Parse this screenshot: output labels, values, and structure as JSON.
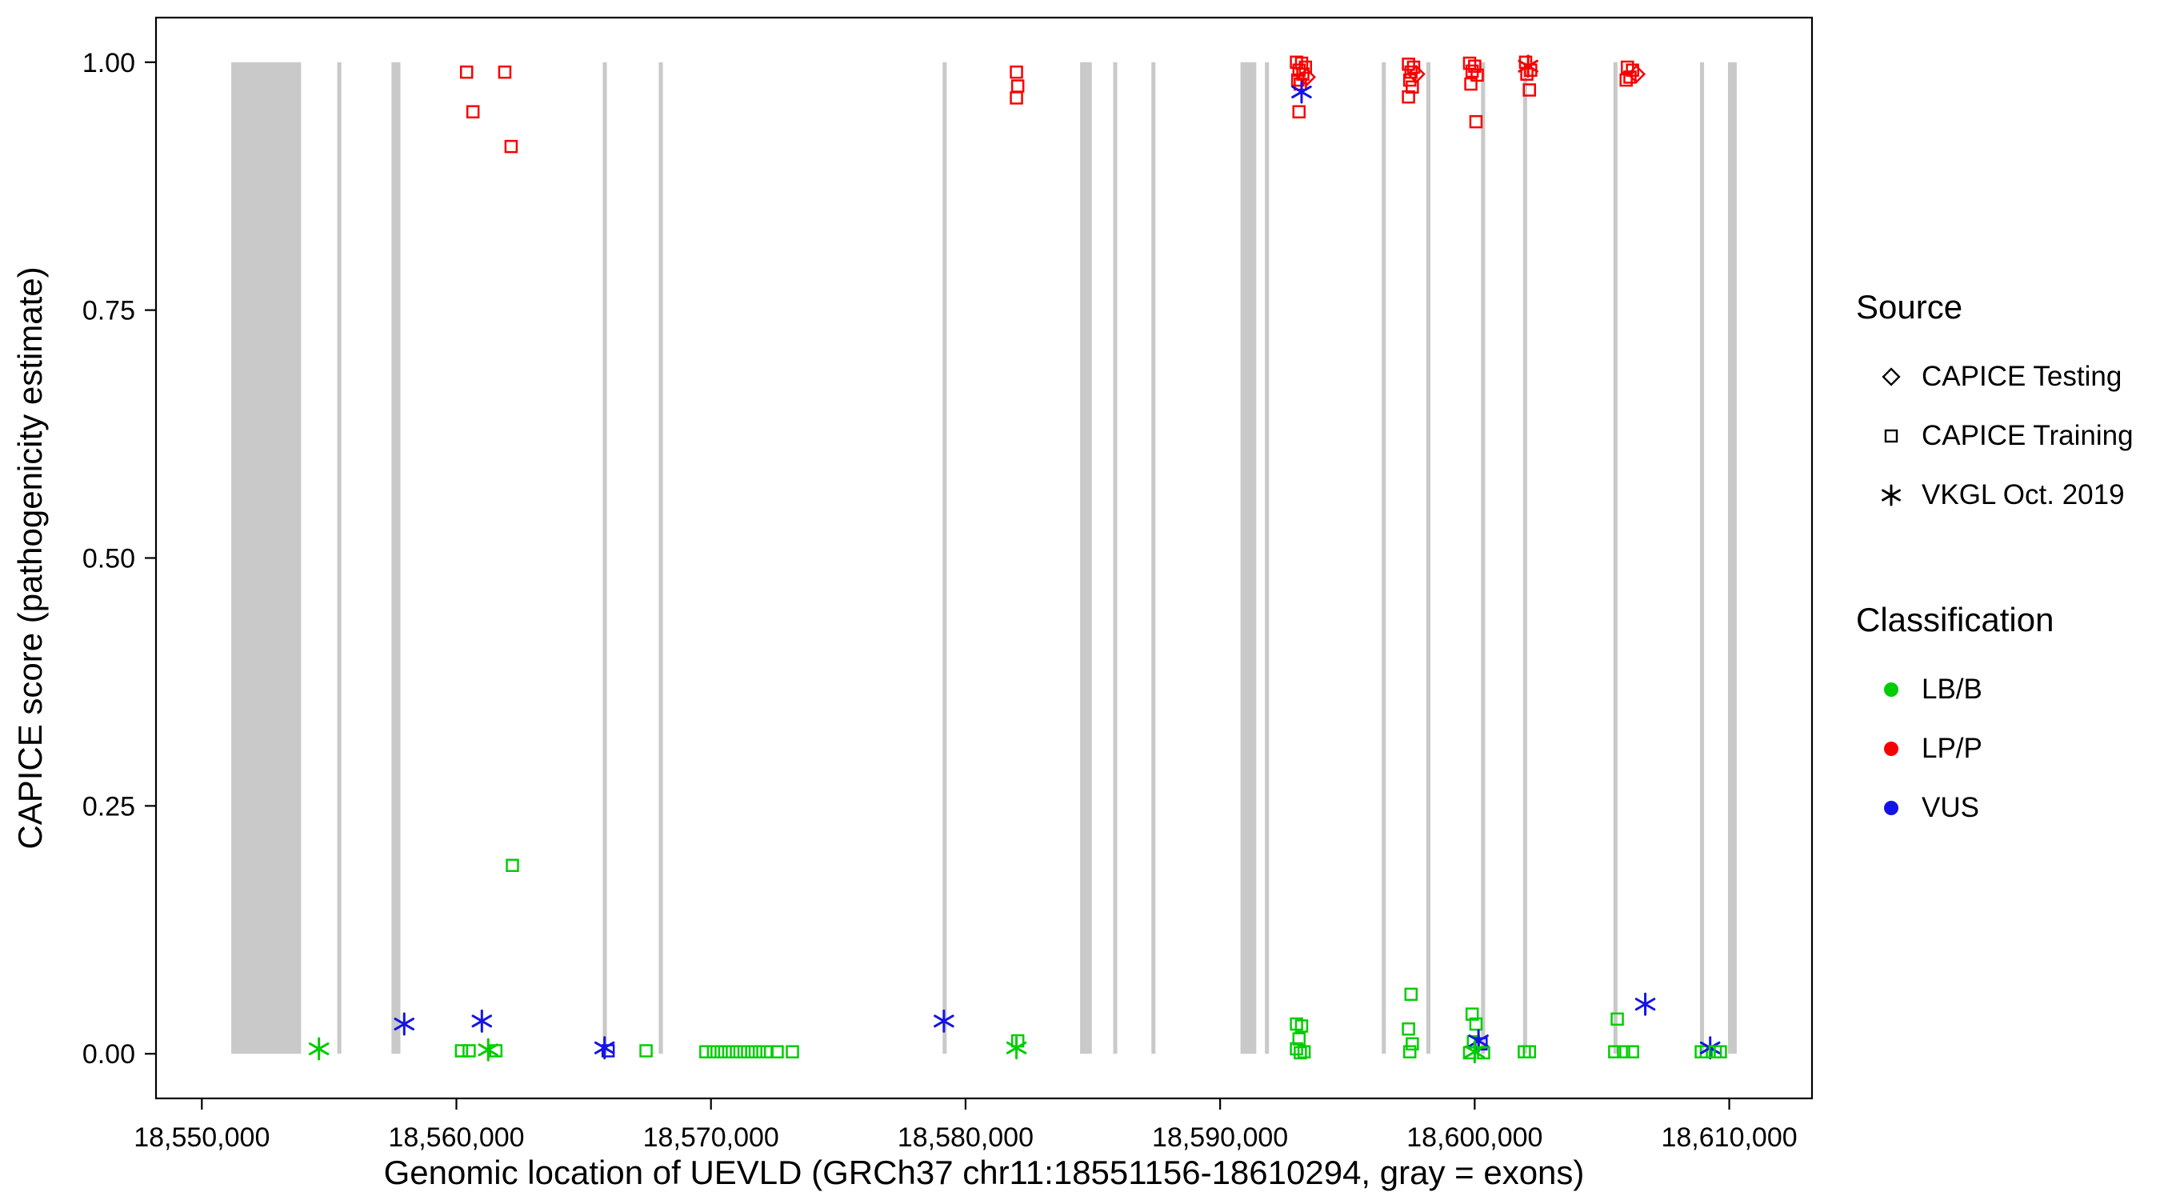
{
  "colors": {
    "LB/B": "#00CD00",
    "LP/P": "#F80000",
    "VUS": "#1414E6",
    "exon": "#C9C9C9",
    "axis": "#000000"
  },
  "legend": {
    "source": {
      "title": "Source",
      "items": [
        {
          "label": "CAPICE Testing",
          "marker": "diamond"
        },
        {
          "label": "CAPICE Training",
          "marker": "square"
        },
        {
          "label": "VKGL Oct. 2019",
          "marker": "asterisk"
        }
      ]
    },
    "classification": {
      "title": "Classification",
      "items": [
        {
          "label": "LB/B",
          "color": "#00CD00"
        },
        {
          "label": "LP/P",
          "color": "#F80000"
        },
        {
          "label": "VUS",
          "color": "#1414E6"
        }
      ]
    }
  },
  "chart_data": {
    "type": "scatter",
    "title": "",
    "xlabel": "Genomic location of UEVLD (GRCh37 chr11:18551156-18610294, gray = exons)",
    "ylabel": "CAPICE score (pathogenicity estimate)",
    "xlim": [
      18548200,
      18613250
    ],
    "ylim": [
      -0.045,
      1.045
    ],
    "grid": false,
    "legend_position": "right",
    "x_ticks": [
      {
        "value": 18550000,
        "label": "18,550,000"
      },
      {
        "value": 18560000,
        "label": "18,560,000"
      },
      {
        "value": 18570000,
        "label": "18,570,000"
      },
      {
        "value": 18580000,
        "label": "18,580,000"
      },
      {
        "value": 18590000,
        "label": "18,590,000"
      },
      {
        "value": 18600000,
        "label": "18,600,000"
      },
      {
        "value": 18610000,
        "label": "18,610,000"
      }
    ],
    "y_ticks": [
      {
        "value": 0.0,
        "label": "0.00"
      },
      {
        "value": 0.25,
        "label": "0.25"
      },
      {
        "value": 0.5,
        "label": "0.50"
      },
      {
        "value": 0.75,
        "label": "0.75"
      },
      {
        "value": 1.0,
        "label": "1.00"
      }
    ],
    "exons": [
      [
        18551156,
        18553900
      ],
      [
        18555320,
        18555480
      ],
      [
        18557450,
        18557800
      ],
      [
        18565750,
        18565910
      ],
      [
        18567950,
        18568110
      ],
      [
        18579100,
        18579260
      ],
      [
        18584500,
        18584960
      ],
      [
        18585800,
        18585960
      ],
      [
        18587300,
        18587460
      ],
      [
        18590800,
        18591420
      ],
      [
        18591760,
        18591920
      ],
      [
        18596350,
        18596510
      ],
      [
        18598100,
        18598260
      ],
      [
        18600250,
        18600410
      ],
      [
        18601900,
        18602060
      ],
      [
        18605450,
        18605610
      ],
      [
        18608850,
        18609010
      ],
      [
        18609950,
        18610294
      ]
    ],
    "points": [
      [
        18560400,
        0.99,
        "LP/P",
        "CAPICE Training"
      ],
      [
        18561900,
        0.99,
        "LP/P",
        "CAPICE Training"
      ],
      [
        18560650,
        0.95,
        "LP/P",
        "CAPICE Training"
      ],
      [
        18562150,
        0.915,
        "LP/P",
        "CAPICE Training"
      ],
      [
        18582000,
        0.99,
        "LP/P",
        "CAPICE Training"
      ],
      [
        18582050,
        0.976,
        "LP/P",
        "CAPICE Training"
      ],
      [
        18582000,
        0.964,
        "LP/P",
        "CAPICE Training"
      ],
      [
        18593000,
        1.0,
        "LP/P",
        "CAPICE Training"
      ],
      [
        18593200,
        0.999,
        "LP/P",
        "CAPICE Training"
      ],
      [
        18593350,
        0.995,
        "LP/P",
        "CAPICE Training"
      ],
      [
        18593100,
        0.992,
        "LP/P",
        "CAPICE Training"
      ],
      [
        18593250,
        0.988,
        "LP/P",
        "CAPICE Training"
      ],
      [
        18593400,
        0.985,
        "LP/P",
        "CAPICE Testing"
      ],
      [
        18593050,
        0.982,
        "LP/P",
        "CAPICE Training"
      ],
      [
        18593150,
        0.978,
        "LP/P",
        "CAPICE Training"
      ],
      [
        18593200,
        0.97,
        "VUS",
        "VKGL Oct. 2019"
      ],
      [
        18593100,
        0.95,
        "LP/P",
        "CAPICE Training"
      ],
      [
        18597400,
        0.998,
        "LP/P",
        "CAPICE Training"
      ],
      [
        18597600,
        0.995,
        "LP/P",
        "CAPICE Training"
      ],
      [
        18597500,
        0.99,
        "LP/P",
        "CAPICE Training"
      ],
      [
        18597700,
        0.988,
        "LP/P",
        "CAPICE Testing"
      ],
      [
        18597450,
        0.982,
        "LP/P",
        "CAPICE Training"
      ],
      [
        18597550,
        0.975,
        "LP/P",
        "CAPICE Training"
      ],
      [
        18597400,
        0.965,
        "LP/P",
        "CAPICE Training"
      ],
      [
        18599800,
        0.999,
        "LP/P",
        "CAPICE Training"
      ],
      [
        18600000,
        0.996,
        "LP/P",
        "CAPICE Training"
      ],
      [
        18599900,
        0.991,
        "LP/P",
        "CAPICE Training"
      ],
      [
        18600100,
        0.987,
        "LP/P",
        "CAPICE Training"
      ],
      [
        18599850,
        0.978,
        "LP/P",
        "CAPICE Training"
      ],
      [
        18600050,
        0.94,
        "LP/P",
        "CAPICE Training"
      ],
      [
        18602000,
        1.0,
        "LP/P",
        "CAPICE Training"
      ],
      [
        18602100,
        0.996,
        "LP/P",
        "VKGL Oct. 2019"
      ],
      [
        18602200,
        0.992,
        "LP/P",
        "CAPICE Training"
      ],
      [
        18602050,
        0.988,
        "LP/P",
        "CAPICE Training"
      ],
      [
        18602150,
        0.972,
        "LP/P",
        "CAPICE Training"
      ],
      [
        18606000,
        0.995,
        "LP/P",
        "CAPICE Training"
      ],
      [
        18606200,
        0.992,
        "LP/P",
        "CAPICE Training"
      ],
      [
        18606350,
        0.988,
        "LP/P",
        "CAPICE Testing"
      ],
      [
        18606100,
        0.985,
        "LP/P",
        "CAPICE Training"
      ],
      [
        18605950,
        0.982,
        "LP/P",
        "CAPICE Training"
      ],
      [
        18554600,
        0.005,
        "LB/B",
        "VKGL Oct. 2019"
      ],
      [
        18557950,
        0.03,
        "VUS",
        "VKGL Oct. 2019"
      ],
      [
        18560200,
        0.003,
        "LB/B",
        "CAPICE Training"
      ],
      [
        18560500,
        0.003,
        "LB/B",
        "CAPICE Training"
      ],
      [
        18561000,
        0.033,
        "VUS",
        "VKGL Oct. 2019"
      ],
      [
        18561250,
        0.004,
        "LB/B",
        "VKGL Oct. 2019"
      ],
      [
        18561550,
        0.003,
        "LB/B",
        "CAPICE Training"
      ],
      [
        18562200,
        0.19,
        "LB/B",
        "CAPICE Training"
      ],
      [
        18565820,
        0.006,
        "VUS",
        "VKGL Oct. 2019"
      ],
      [
        18565960,
        0.003,
        "VUS",
        "CAPICE Training"
      ],
      [
        18567450,
        0.003,
        "LB/B",
        "CAPICE Training"
      ],
      [
        18569800,
        0.002,
        "LB/B",
        "CAPICE Training"
      ],
      [
        18570100,
        0.002,
        "LB/B",
        "CAPICE Training"
      ],
      [
        18570400,
        0.002,
        "LB/B",
        "CAPICE Training"
      ],
      [
        18570700,
        0.002,
        "LB/B",
        "CAPICE Training"
      ],
      [
        18571000,
        0.002,
        "LB/B",
        "CAPICE Training"
      ],
      [
        18571300,
        0.002,
        "LB/B",
        "CAPICE Training"
      ],
      [
        18571600,
        0.002,
        "LB/B",
        "CAPICE Training"
      ],
      [
        18571900,
        0.002,
        "LB/B",
        "CAPICE Training"
      ],
      [
        18572200,
        0.002,
        "LB/B",
        "CAPICE Training"
      ],
      [
        18572600,
        0.002,
        "LB/B",
        "CAPICE Training"
      ],
      [
        18573200,
        0.002,
        "LB/B",
        "CAPICE Training"
      ],
      [
        18579150,
        0.033,
        "VUS",
        "VKGL Oct. 2019"
      ],
      [
        18582050,
        0.013,
        "LB/B",
        "CAPICE Training"
      ],
      [
        18582000,
        0.006,
        "LB/B",
        "VKGL Oct. 2019"
      ],
      [
        18593000,
        0.03,
        "LB/B",
        "CAPICE Training"
      ],
      [
        18593200,
        0.028,
        "LB/B",
        "CAPICE Training"
      ],
      [
        18593100,
        0.015,
        "LB/B",
        "CAPICE Training"
      ],
      [
        18593000,
        0.005,
        "LB/B",
        "CAPICE Training"
      ],
      [
        18593300,
        0.002,
        "LB/B",
        "CAPICE Training"
      ],
      [
        18593150,
        0.001,
        "LB/B",
        "CAPICE Training"
      ],
      [
        18597500,
        0.06,
        "LB/B",
        "CAPICE Training"
      ],
      [
        18597400,
        0.025,
        "LB/B",
        "CAPICE Training"
      ],
      [
        18597550,
        0.01,
        "LB/B",
        "CAPICE Training"
      ],
      [
        18597450,
        0.002,
        "LB/B",
        "CAPICE Training"
      ],
      [
        18599900,
        0.04,
        "LB/B",
        "CAPICE Training"
      ],
      [
        18600050,
        0.03,
        "LB/B",
        "CAPICE Training"
      ],
      [
        18599950,
        0.012,
        "LB/B",
        "CAPICE Training"
      ],
      [
        18600150,
        0.013,
        "VUS",
        "VKGL Oct. 2019"
      ],
      [
        18600250,
        0.01,
        "VUS",
        "CAPICE Training"
      ],
      [
        18600000,
        0.002,
        "LB/B",
        "VKGL Oct. 2019"
      ],
      [
        18599800,
        0.001,
        "LB/B",
        "CAPICE Training"
      ],
      [
        18600350,
        0.001,
        "LB/B",
        "CAPICE Training"
      ],
      [
        18601950,
        0.002,
        "LB/B",
        "CAPICE Training"
      ],
      [
        18602150,
        0.002,
        "LB/B",
        "CAPICE Training"
      ],
      [
        18605600,
        0.035,
        "LB/B",
        "CAPICE Training"
      ],
      [
        18605500,
        0.002,
        "LB/B",
        "CAPICE Training"
      ],
      [
        18605850,
        0.002,
        "LB/B",
        "CAPICE Training"
      ],
      [
        18606200,
        0.002,
        "LB/B",
        "CAPICE Training"
      ],
      [
        18606700,
        0.05,
        "VUS",
        "VKGL Oct. 2019"
      ],
      [
        18608900,
        0.002,
        "LB/B",
        "CAPICE Training"
      ],
      [
        18609100,
        0.002,
        "LB/B",
        "CAPICE Training"
      ],
      [
        18609250,
        0.006,
        "VUS",
        "VKGL Oct. 2019"
      ],
      [
        18609450,
        0.002,
        "LB/B",
        "CAPICE Training"
      ],
      [
        18609650,
        0.002,
        "LB/B",
        "CAPICE Training"
      ]
    ]
  }
}
